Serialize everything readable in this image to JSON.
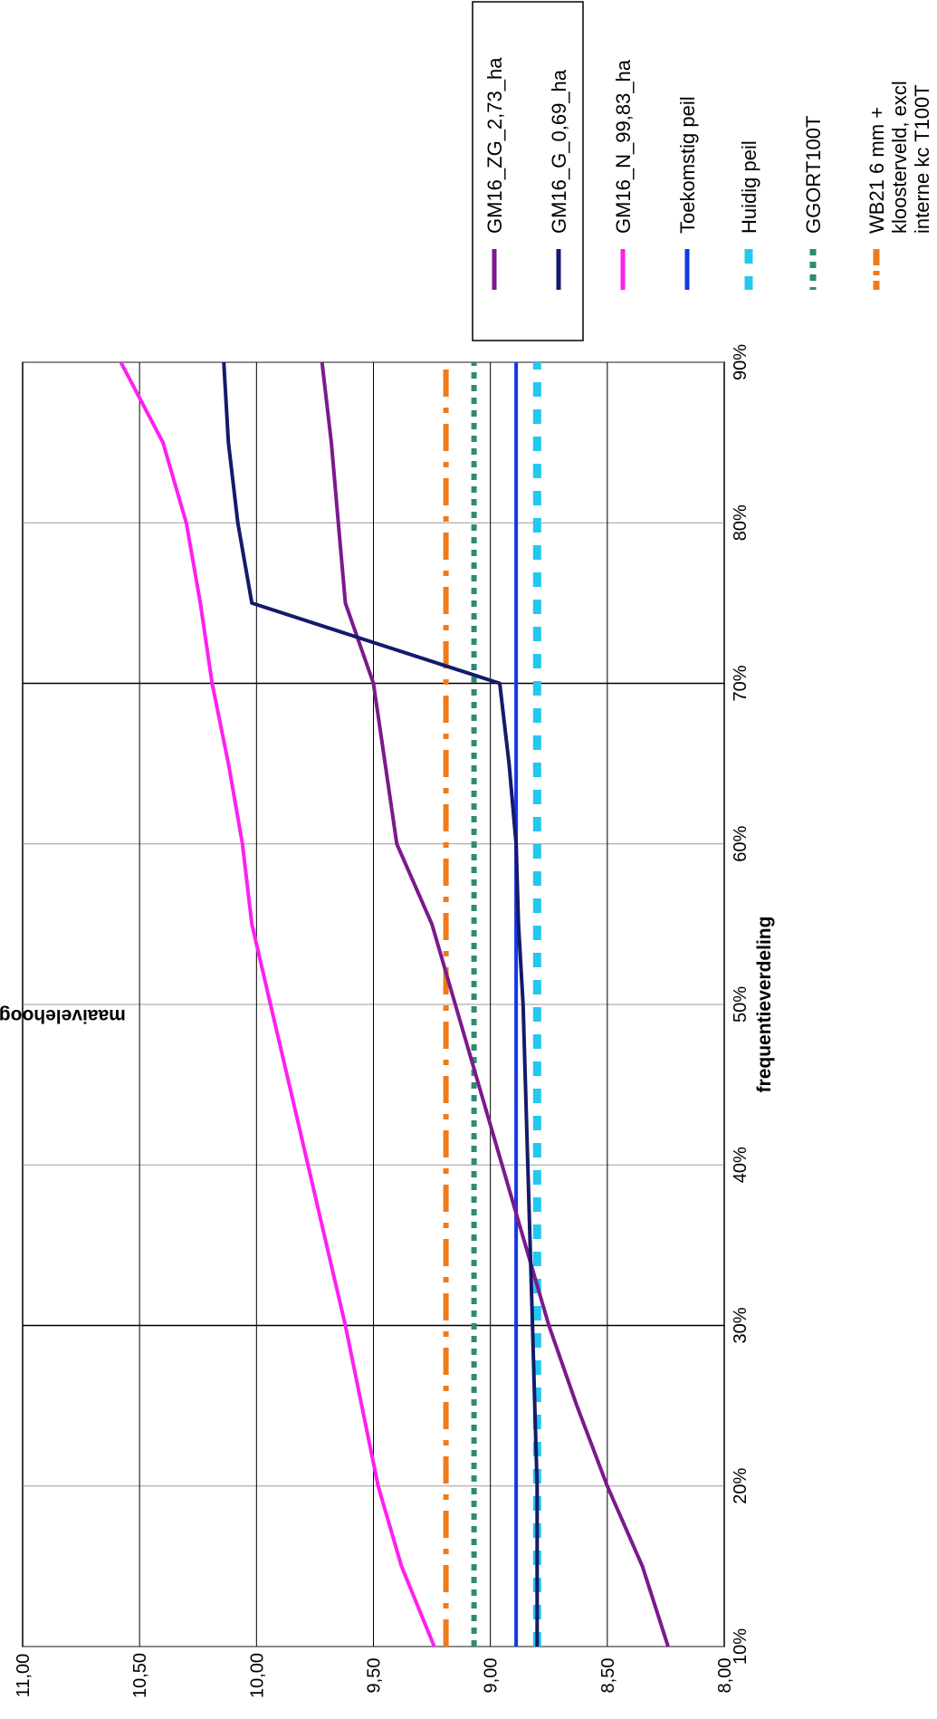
{
  "chart_data": {
    "type": "line",
    "orientation": "rotated 90 degrees clockwise",
    "xlabel": "frequentieverdeling",
    "ylabel": "maaivelehoogte [m+NAP]",
    "x_tick_labels": [
      "10%",
      "20%",
      "30%",
      "40%",
      "50%",
      "60%",
      "70%",
      "80%",
      "90%"
    ],
    "y_tick_labels": [
      "8,00",
      "8,50",
      "9,00",
      "9,50",
      "10,00",
      "10,50",
      "11,00"
    ],
    "xlim": [
      0.1,
      0.9
    ],
    "ylim": [
      8.0,
      11.0
    ],
    "grid": true,
    "legend_position": "top-right (boxed)",
    "x": [
      0.1,
      0.15,
      0.2,
      0.25,
      0.3,
      0.35,
      0.4,
      0.45,
      0.5,
      0.55,
      0.6,
      0.65,
      0.7,
      0.75,
      0.8,
      0.85,
      0.9
    ],
    "series": [
      {
        "name": "GM16_ZG_2,73_ha",
        "color": "#7b1a8c",
        "style": "solid",
        "values": [
          8.24,
          8.35,
          8.5,
          8.63,
          8.75,
          8.85,
          8.95,
          9.05,
          9.15,
          9.25,
          9.4,
          9.45,
          9.5,
          9.62,
          9.65,
          9.68,
          9.72
        ]
      },
      {
        "name": "GM16_G_0,69_ha",
        "color": "#141a6b",
        "style": "solid",
        "values": [
          8.8,
          8.8,
          8.8,
          8.81,
          8.82,
          8.83,
          8.84,
          8.85,
          8.86,
          8.88,
          8.89,
          8.92,
          8.96,
          10.02,
          10.08,
          10.12,
          10.14
        ]
      },
      {
        "name": "GM16_N_99,83_ha",
        "color": "#ff1ff0",
        "style": "solid",
        "values": [
          9.24,
          9.38,
          9.48,
          9.55,
          9.62,
          9.7,
          9.78,
          9.86,
          9.94,
          10.02,
          10.06,
          10.12,
          10.19,
          10.24,
          10.3,
          10.4,
          10.58
        ]
      },
      {
        "name": "Toekomstig peil",
        "color": "#1437e8",
        "style": "solid",
        "values": [
          8.89,
          8.89,
          8.89,
          8.89,
          8.89,
          8.89,
          8.89,
          8.89,
          8.89,
          8.89,
          8.89,
          8.89,
          8.89,
          8.89,
          8.89,
          8.89,
          8.89
        ]
      },
      {
        "name": "Huidig peil",
        "color": "#23c8f0",
        "style": "dashed",
        "values": [
          8.8,
          8.8,
          8.8,
          8.8,
          8.8,
          8.8,
          8.8,
          8.8,
          8.8,
          8.8,
          8.8,
          8.8,
          8.8,
          8.8,
          8.8,
          8.8,
          8.8
        ]
      },
      {
        "name": "GGORT100T",
        "color": "#2e8b73",
        "style": "dotted",
        "values": [
          9.07,
          9.07,
          9.07,
          9.07,
          9.07,
          9.07,
          9.07,
          9.07,
          9.07,
          9.07,
          9.07,
          9.07,
          9.07,
          9.07,
          9.07,
          9.07,
          9.07
        ]
      },
      {
        "name": "WB21 6 mm + kloosterveld, excl interne kc T100T",
        "legend_lines": [
          "WB21 6 mm +",
          "kloosterveld, excl",
          "interne kc T100T"
        ],
        "color": "#f07a1a",
        "style": "dashdot",
        "values": [
          9.19,
          9.19,
          9.19,
          9.19,
          9.19,
          9.19,
          9.19,
          9.19,
          9.19,
          9.19,
          9.19,
          9.19,
          9.19,
          9.19,
          9.19,
          9.19,
          9.19
        ]
      }
    ]
  }
}
